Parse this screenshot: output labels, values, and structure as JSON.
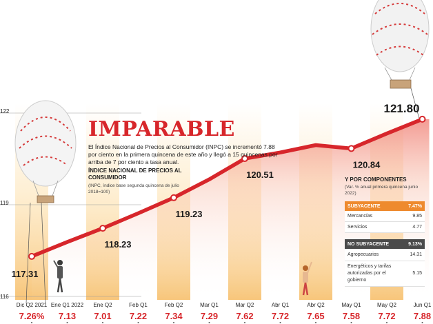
{
  "text": {
    "title": "IMPARABLE",
    "intro": "El Índice Nacional de Precios al Consumidor (INPC) se incrementó 7.88 por ciento en la primera quincena de este año y llegó a 15 quincenas por arriba de 7 por ciento a tasa anual.",
    "chart_title": "ÍNDICE NACIONAL DE PRECIOS AL CONSUMIDOR",
    "chart_note": "(INPC, índice base segunda quincena de julio 2018=100)"
  },
  "components": {
    "title": "Y POR COMPONENTES",
    "note": "(Var. % anual primera quincena junio 2022)",
    "subyacente": {
      "label": "SUBYACENTE",
      "value": "7.47%",
      "color": "#ee8a2e",
      "items": [
        {
          "label": "Mercancías",
          "value": "9.85"
        },
        {
          "label": "Servicios",
          "value": "4.77"
        }
      ]
    },
    "no_subyacente": {
      "label": "NO SUBYACENTE",
      "value": "9.13%",
      "color": "#4a4a4a",
      "items": [
        {
          "label": "Agropecuarios",
          "value": "14.31"
        },
        {
          "label": "Energéticos y tarifas autorizadas por el gobierno",
          "value": "5.15"
        }
      ]
    }
  },
  "chart_data": {
    "type": "line",
    "title": "ÍNDICE NACIONAL DE PRECIOS AL CONSUMIDOR",
    "xlabel": "",
    "ylabel": "",
    "ylim": [
      116,
      122
    ],
    "yticks": [
      "116",
      "119",
      "122"
    ],
    "grid": true,
    "line_color": "#d7262b",
    "pct_color": "#d7262b",
    "categories": [
      "Dic Q2 2021",
      "Ene Q1 2022",
      "Ene Q2",
      "Feb Q1",
      "Feb Q2",
      "Mar Q1",
      "Mar Q2",
      "Abr Q1",
      "Abr Q2",
      "May Q1",
      "May Q2",
      "Jun Q1"
    ],
    "series": [
      {
        "values": [
          117.31,
          117.78,
          118.23,
          118.72,
          119.23,
          119.83,
          120.51,
          120.71,
          120.95,
          120.84,
          121.33,
          121.8
        ]
      }
    ],
    "value_labels": {
      "0": "117.31",
      "2": "118.23",
      "4": "119.23",
      "6": "120.51",
      "9": "120.84",
      "11": "121.80"
    },
    "annual_pct": [
      "7.26%",
      "7.13",
      "7.01",
      "7.22",
      "7.34",
      "7.29",
      "7.62",
      "7.72",
      "7.65",
      "7.58",
      "7.72",
      "7.88"
    ]
  }
}
